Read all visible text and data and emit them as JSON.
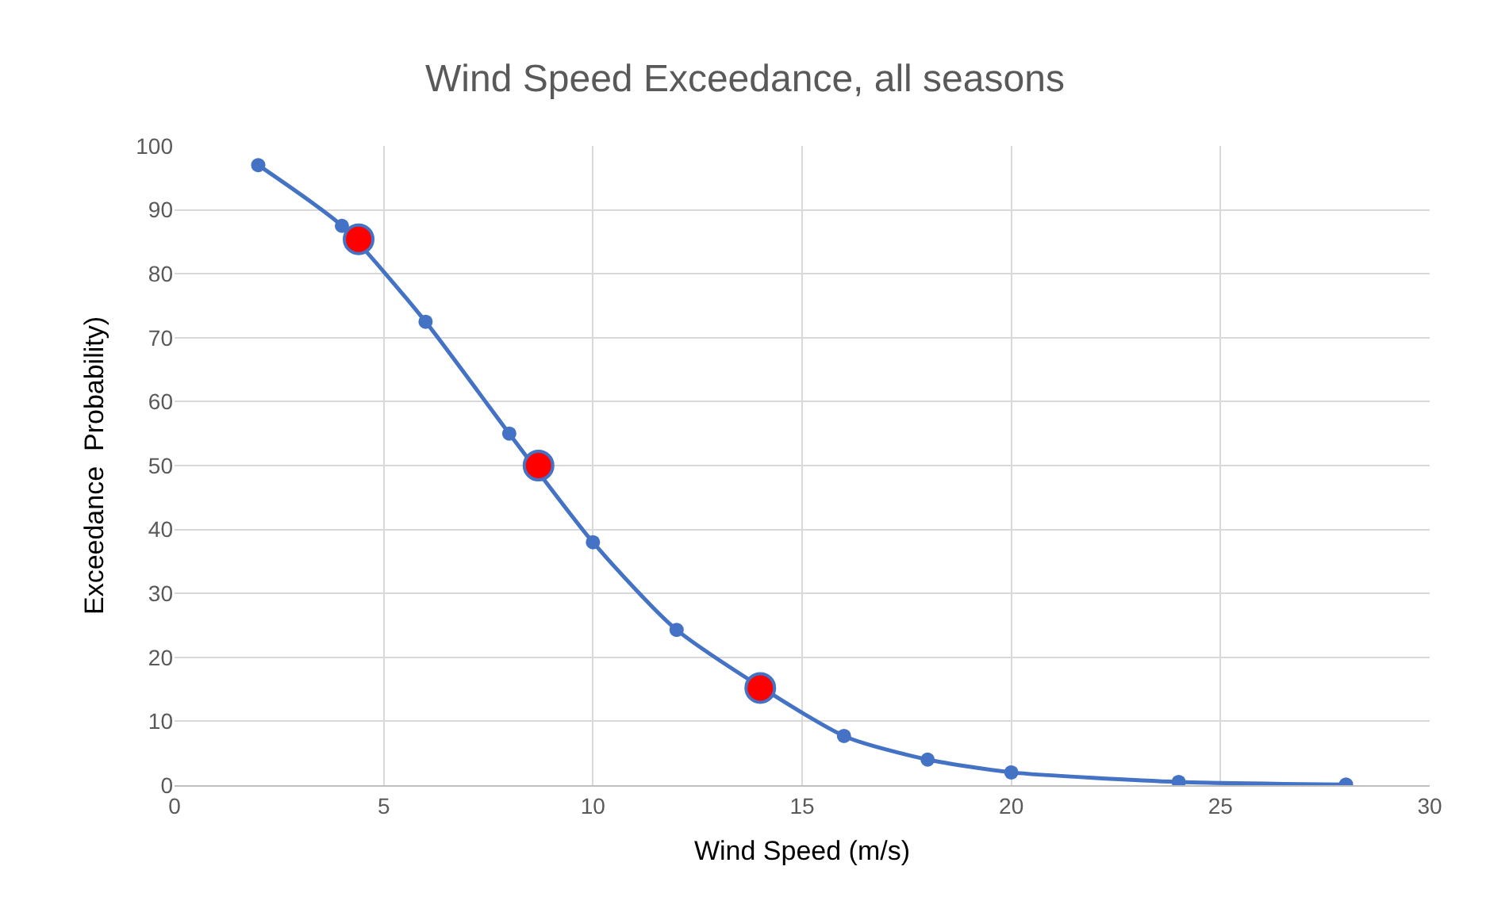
{
  "chart_data": {
    "type": "line",
    "title": "Wind Speed Exceedance, all seasons",
    "xlabel": "Wind Speed (m/s)",
    "ylabel": "Exceedance  Probability)",
    "xlim": [
      0,
      30
    ],
    "xticks": [
      0,
      5,
      10,
      15,
      20,
      25,
      30
    ],
    "ylim": [
      0,
      100
    ],
    "yticks": [
      0,
      10,
      20,
      30,
      40,
      50,
      60,
      70,
      80,
      90,
      100
    ],
    "grid": true,
    "marker": "circle",
    "line_style": "solid",
    "series": [
      {
        "color": "#4472c4",
        "x": [
          2,
          4,
          6,
          8,
          10,
          12,
          16,
          18,
          20,
          24,
          28
        ],
        "values": [
          97,
          87.5,
          72.5,
          55,
          38,
          24.3,
          7.7,
          4,
          2,
          0.5,
          0.1
        ]
      },
      {
        "type": "scatter",
        "color": "#ff0000",
        "x": [
          4.4,
          8.7,
          14
        ],
        "values": [
          85.4,
          50,
          15.2
        ]
      }
    ]
  }
}
